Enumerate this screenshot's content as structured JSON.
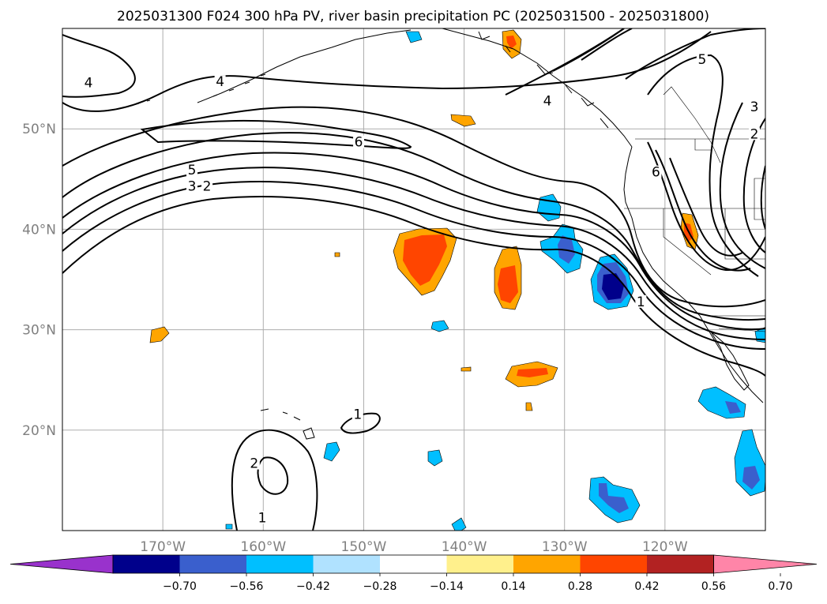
{
  "title": "2025031300 F024 300 hPa PV, river basin precipitation PC (2025031500 - 2025031800)",
  "map": {
    "lon_range": [
      -180,
      -110
    ],
    "lat_range": [
      10,
      60
    ],
    "grid": true,
    "lat_ticks": [
      {
        "value": 50,
        "label": "50°N"
      },
      {
        "value": 40,
        "label": "40°N"
      },
      {
        "value": 30,
        "label": "30°N"
      },
      {
        "value": 20,
        "label": "20°N"
      }
    ],
    "lon_ticks": [
      {
        "value": -170,
        "label": "170°W"
      },
      {
        "value": -160,
        "label": "160°W"
      },
      {
        "value": -150,
        "label": "150°W"
      },
      {
        "value": -140,
        "label": "140°W"
      },
      {
        "value": -130,
        "label": "130°W"
      },
      {
        "value": -120,
        "label": "120°W"
      }
    ]
  },
  "pv_contour_labels": [
    {
      "text": "4",
      "lon": -177.4,
      "lat": 54.3
    },
    {
      "text": "4",
      "lon": -164.3,
      "lat": 54.4
    },
    {
      "text": "4",
      "lon": -131.7,
      "lat": 52.5
    },
    {
      "text": "6",
      "lon": -150.5,
      "lat": 48.4
    },
    {
      "text": "5",
      "lon": -167.1,
      "lat": 45.6
    },
    {
      "text": "3",
      "lon": -167.1,
      "lat": 44.0
    },
    {
      "text": "2",
      "lon": -165.6,
      "lat": 44.0
    },
    {
      "text": "6",
      "lon": -120.9,
      "lat": 45.4
    },
    {
      "text": "1",
      "lon": -122.4,
      "lat": 32.5
    },
    {
      "text": "1",
      "lon": -150.6,
      "lat": 21.3
    },
    {
      "text": "2",
      "lon": -160.9,
      "lat": 16.4
    },
    {
      "text": "1",
      "lon": -160.1,
      "lat": 11.0
    },
    {
      "text": "3",
      "lon": -111.1,
      "lat": 51.9
    },
    {
      "text": "2",
      "lon": -111.1,
      "lat": 49.2
    },
    {
      "text": "5",
      "lon": -116.3,
      "lat": 56.6
    }
  ],
  "colorbar": {
    "labels": [
      "−0.70",
      "−0.56",
      "−0.42",
      "−0.28",
      "−0.14",
      "0.14",
      "0.28",
      "0.42",
      "0.56",
      "0.70"
    ],
    "colors": [
      "#9932cc",
      "#00008b",
      "#3a5fcd",
      "#00bfff",
      "#b0e2ff",
      "#ffffff",
      "#fff08c",
      "#ffa500",
      "#ff4500",
      "#b22222",
      "#ff85a8"
    ]
  },
  "precip_colors": {
    "pos_0": "#ffa500",
    "pos_1": "#ff4500",
    "neg_0": "#00bfff",
    "neg_1": "#3a5fcd",
    "neg_2": "#00008b"
  }
}
